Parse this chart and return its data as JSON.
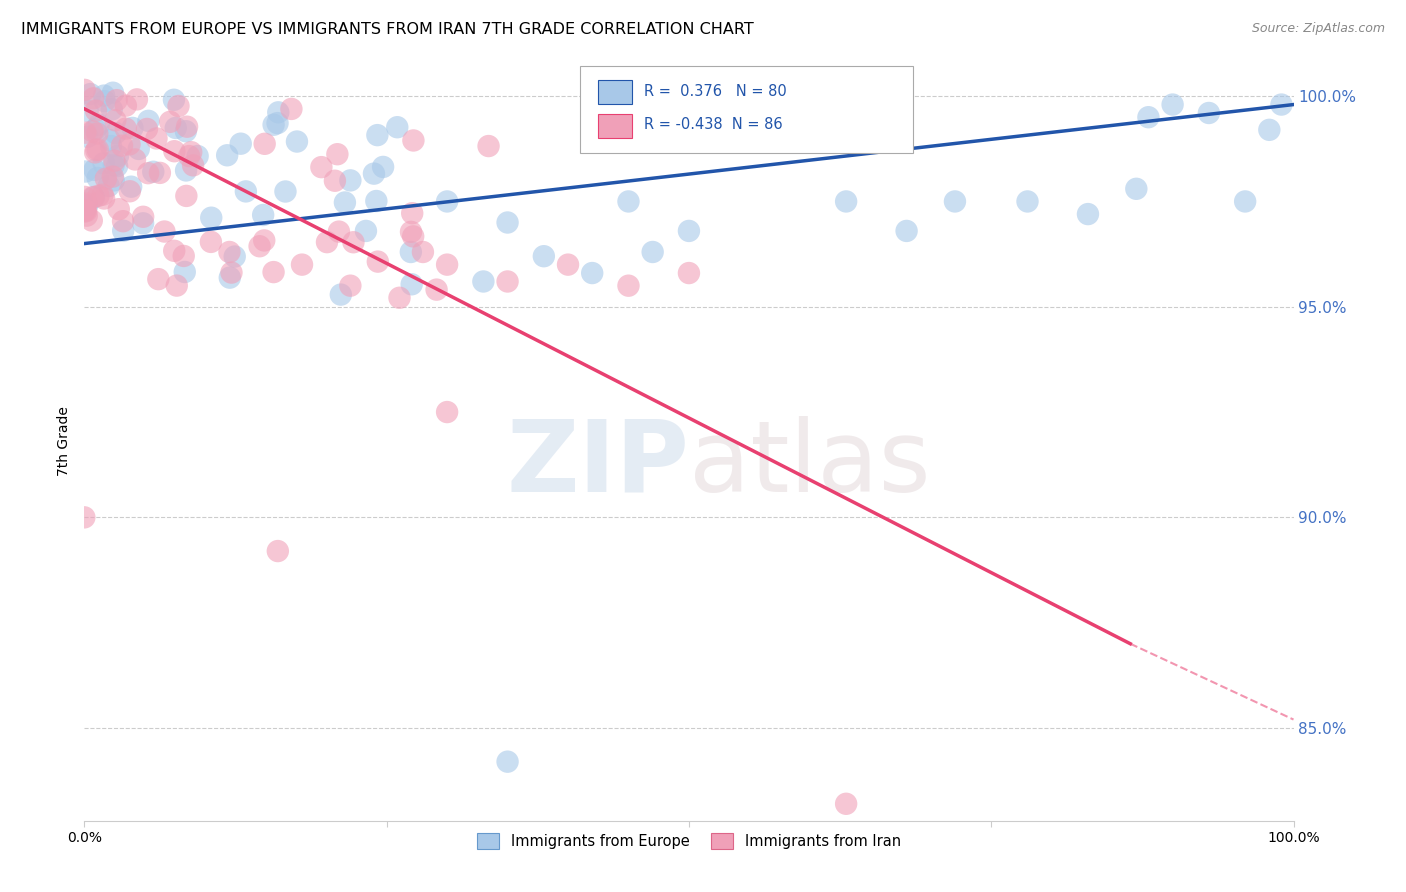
{
  "title": "IMMIGRANTS FROM EUROPE VS IMMIGRANTS FROM IRAN 7TH GRADE CORRELATION CHART",
  "source": "Source: ZipAtlas.com",
  "ylabel": "7th Grade",
  "xlim": [
    0.0,
    1.0
  ],
  "ylim": [
    0.828,
    1.008
  ],
  "yticks": [
    0.85,
    0.9,
    0.95,
    1.0
  ],
  "ytick_labels": [
    "85.0%",
    "90.0%",
    "95.0%",
    "100.0%"
  ],
  "blue_R": 0.376,
  "blue_N": 80,
  "pink_R": -0.438,
  "pink_N": 86,
  "blue_color": "#a8c8e8",
  "pink_color": "#f0a0b8",
  "blue_line_color": "#2255aa",
  "pink_line_color": "#e84070",
  "watermark_zip": "ZIP",
  "watermark_atlas": "atlas",
  "legend_label_blue": "Immigrants from Europe",
  "legend_label_pink": "Immigrants from Iran",
  "blue_line_y_start": 0.965,
  "blue_line_y_end": 0.998,
  "pink_line_x_end": 0.865,
  "pink_line_y_start": 0.997,
  "pink_line_y_end": 0.87,
  "pink_line_dashed_y_end": 0.852
}
